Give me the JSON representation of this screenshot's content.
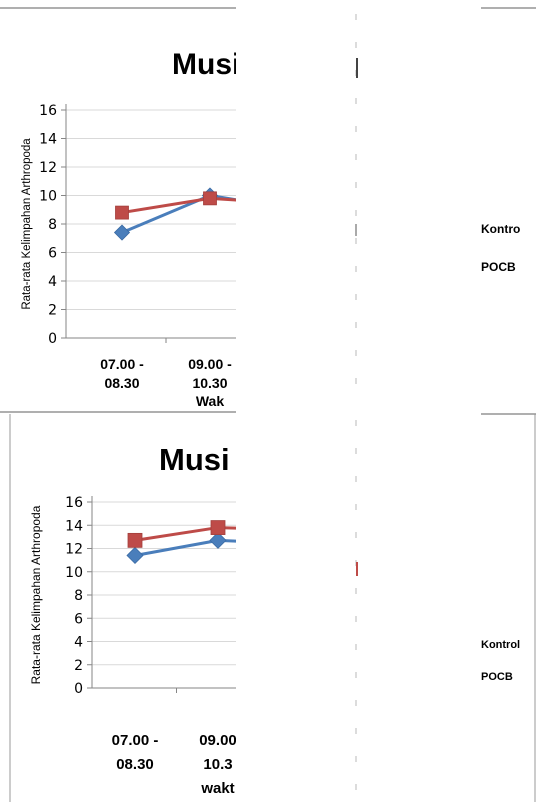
{
  "colors": {
    "series_1": "#4a7ebb",
    "series_2": "#be4b48",
    "grid": "#d9d9d9",
    "axis": "#868686",
    "frame": "#808080"
  },
  "chart_data": [
    {
      "type": "line",
      "title": "Musi",
      "xlabel": "Wak",
      "ylabel": "Rata-rata Kelimpahan Arthropoda",
      "ylim": [
        0,
        16
      ],
      "yticks": [
        "0",
        "2",
        "4",
        "6",
        "8",
        "10",
        "12",
        "14",
        "16"
      ],
      "categories": [
        [
          "07.00 -",
          "08.30"
        ],
        [
          "09.00 -",
          "10.30"
        ]
      ],
      "series": [
        {
          "name": "Kontro",
          "values": [
            7.4,
            10.0
          ],
          "next": 9.0
        },
        {
          "name": "POCB",
          "values": [
            8.8,
            9.8
          ],
          "next": 9.4
        }
      ],
      "grid": true,
      "legend": "right"
    },
    {
      "type": "line",
      "title": "Musi",
      "xlabel": "wakt",
      "ylabel": "Rata-rata Kelimpahan Arthropoda",
      "ylim": [
        0,
        16
      ],
      "yticks": [
        "0",
        "2",
        "4",
        "6",
        "8",
        "10",
        "12",
        "14",
        "16"
      ],
      "categories": [
        [
          "07.00 -",
          "08.30"
        ],
        [
          "09.00",
          "10.3"
        ]
      ],
      "series": [
        {
          "name": "Kontrol",
          "values": [
            11.4,
            12.7
          ],
          "next": 12.4
        },
        {
          "name": "POCB",
          "values": [
            12.7,
            13.8
          ],
          "next": 13.6
        }
      ],
      "grid": true,
      "legend": "right"
    }
  ]
}
